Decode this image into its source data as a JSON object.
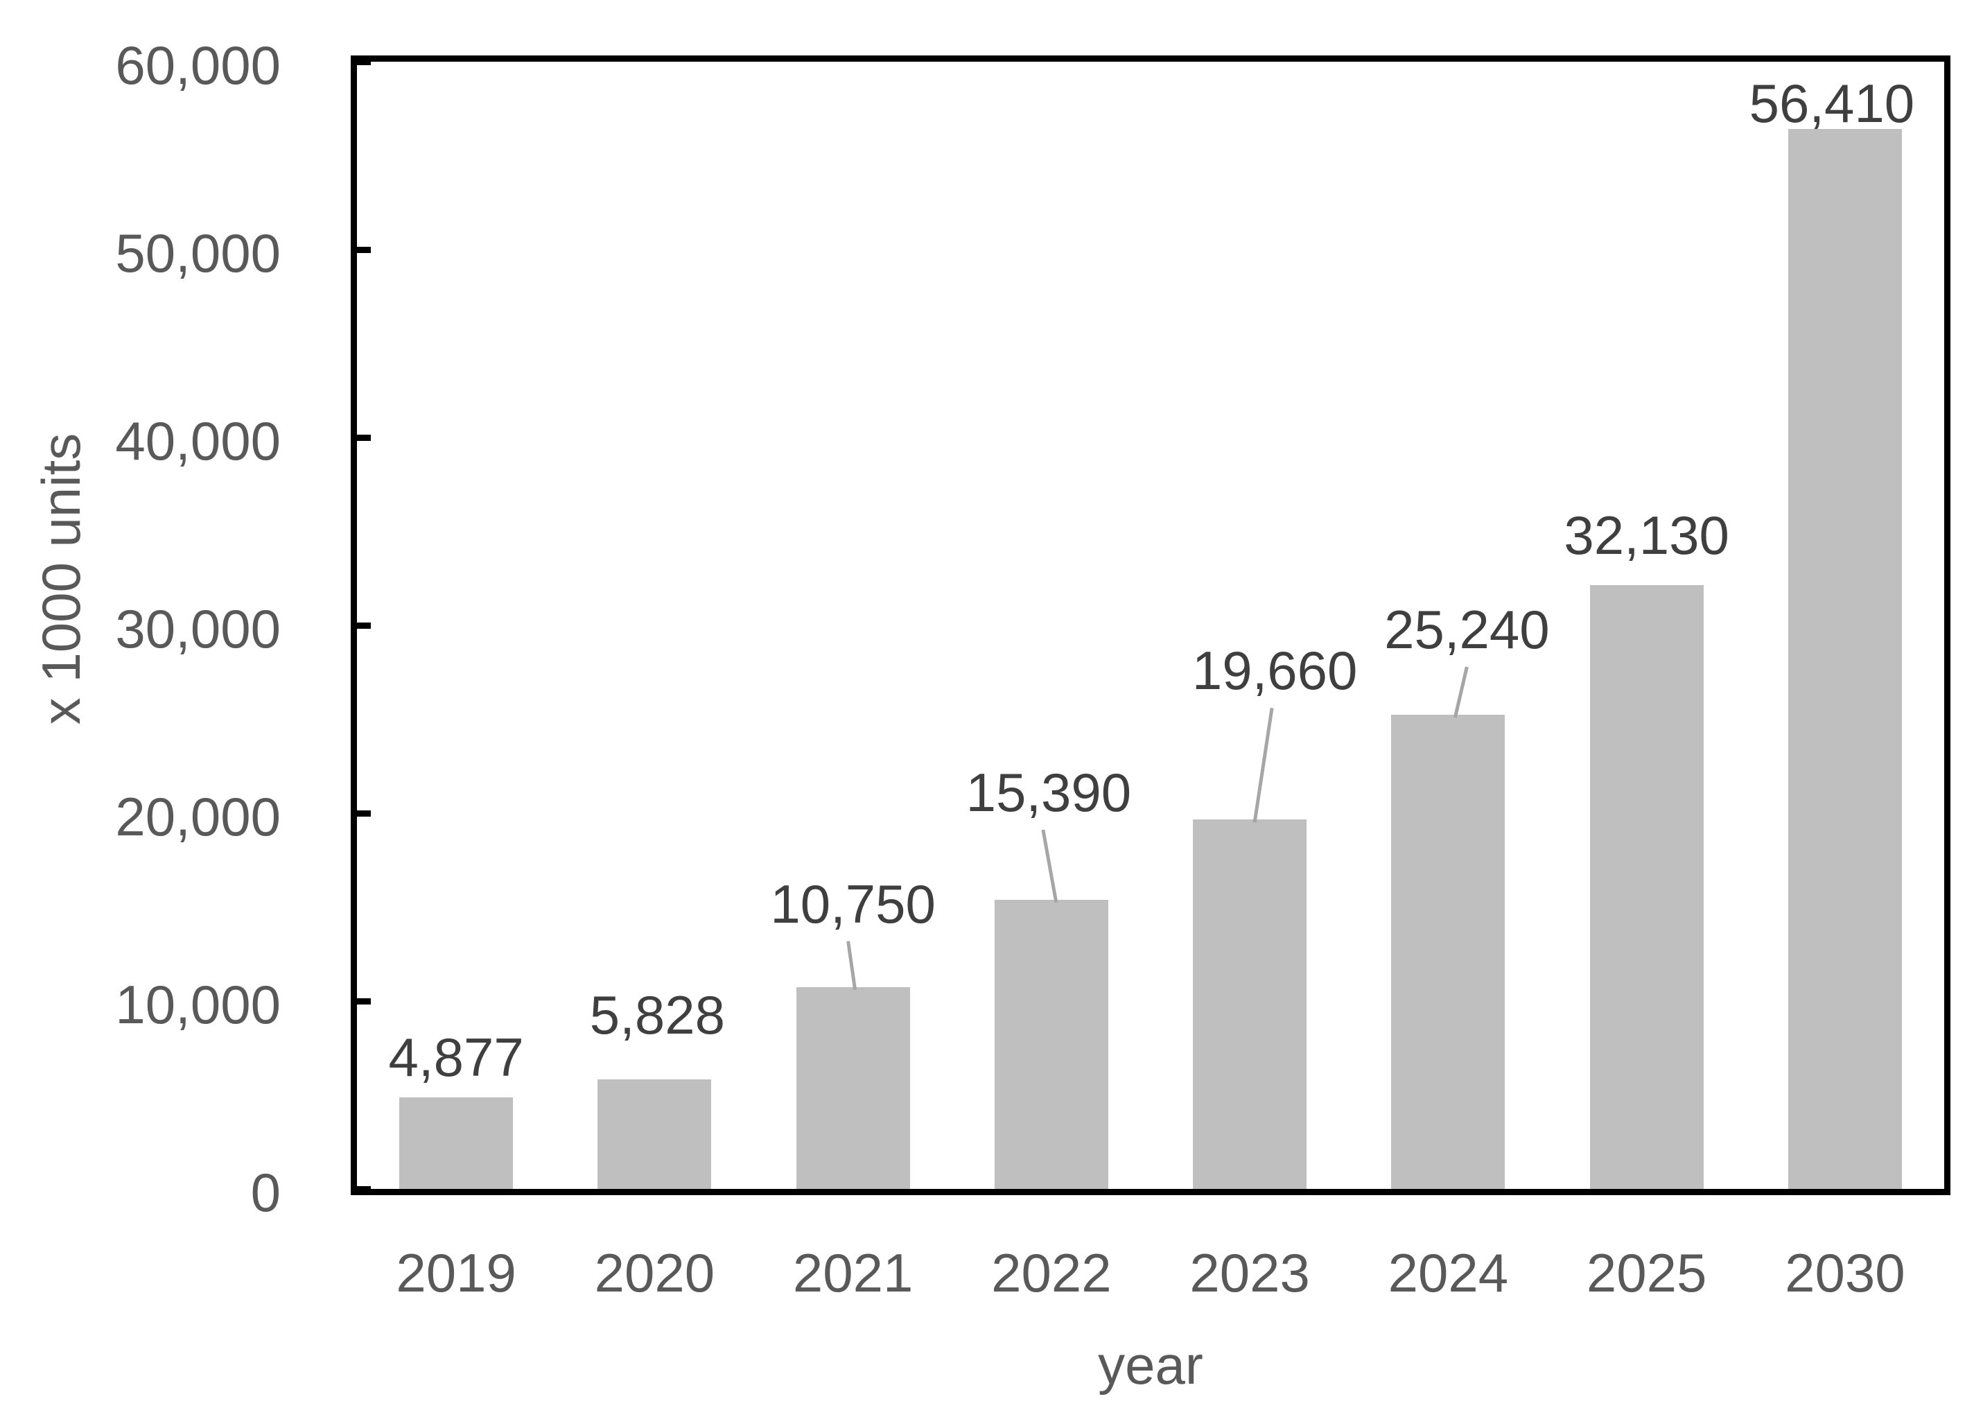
{
  "chart_data": {
    "type": "bar",
    "title": "",
    "xlabel": "year",
    "ylabel": "x 1000 units",
    "categories": [
      "2019",
      "2020",
      "2021",
      "2022",
      "2023",
      "2024",
      "2025",
      "2030"
    ],
    "values": [
      4877,
      5828,
      10750,
      15390,
      19660,
      25240,
      32130,
      56410
    ],
    "data_labels": [
      "4,877",
      "5,828",
      "10,750",
      "15,390",
      "19,660",
      "25,240",
      "32,130",
      "56,410"
    ],
    "ylim": [
      0,
      60000
    ],
    "ytick_values": [
      0,
      10000,
      20000,
      30000,
      40000,
      50000,
      60000
    ],
    "ytick_labels": [
      "0",
      "10,000",
      "20,000",
      "30,000",
      "40,000",
      "50,000",
      "60,000"
    ],
    "grid": false,
    "legend": false,
    "bar_color": "#bfbfbf",
    "axis_color": "#000000",
    "tick_text_color": "#595959",
    "data_label_color": "#3f3f3f",
    "leader_line_color": "#a6a6a6",
    "annotations": [
      {
        "leader": false,
        "rise": 34,
        "dx": 0
      },
      {
        "leader": false,
        "rise": 69,
        "dx": 4
      },
      {
        "leader": true,
        "rise": 96,
        "dx": 0,
        "sx": -7,
        "ex": 3
      },
      {
        "leader": true,
        "rise": 131,
        "dx": -4,
        "sx": -12,
        "ex": 7
      },
      {
        "leader": true,
        "rise": 191,
        "dx": 36,
        "sx": 32,
        "ex": 7
      },
      {
        "leader": true,
        "rise": 99,
        "dx": 27,
        "sx": 27,
        "ex": 10
      },
      {
        "leader": false,
        "rise": 48,
        "dx": 0
      },
      {
        "leader": false,
        "rise": 13,
        "dx": -19
      }
    ]
  }
}
